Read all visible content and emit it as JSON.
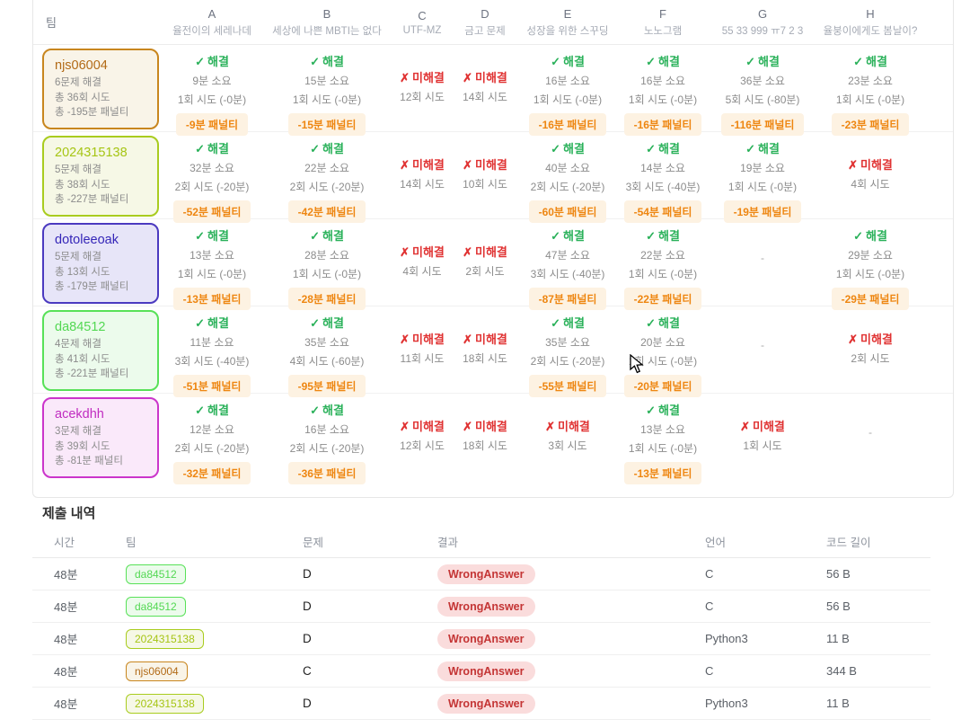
{
  "colors": {
    "solved_green": "#2ab15a",
    "failed_red": "#e03232",
    "penalty_orange": "#ee8611",
    "penalty_bg": "#fdf2e2"
  },
  "labels": {
    "solved": "해결",
    "failed": "미해결",
    "empty_dash": "-",
    "check_icon": "✓",
    "cross_icon": "✗"
  },
  "scoreboard": {
    "team_header": "팀",
    "problems": [
      {
        "letter": "A",
        "title": "율전이의 세레나데"
      },
      {
        "letter": "B",
        "title": "세상에 나쁜 MBTI는 없다"
      },
      {
        "letter": "C",
        "title": "UTF-MZ"
      },
      {
        "letter": "D",
        "title": "금고 문제"
      },
      {
        "letter": "E",
        "title": "성장을 위한 스꾸딩"
      },
      {
        "letter": "F",
        "title": "노노그램"
      },
      {
        "letter": "G",
        "title": "55 33 999 ㅠ7 2 3"
      },
      {
        "letter": "H",
        "title": "율붕이에게도 봄날이?"
      }
    ],
    "teams": [
      {
        "name": "njs06004",
        "solved": "6문제 해결",
        "attempts": "총 36회 시도",
        "penalty": "총 -195분 패널티",
        "text_color": "#b26a16",
        "border_color": "#c8861e",
        "bg_color": "#f9f4e8",
        "cells": [
          {
            "status": "solved",
            "time": "9분 소요",
            "tries": "1회 시도 (-0분)",
            "penalty": "-9분 패널티"
          },
          {
            "status": "solved",
            "time": "15분 소요",
            "tries": "1회 시도 (-0분)",
            "penalty": "-15분 패널티"
          },
          {
            "status": "failed",
            "tries": "12회 시도"
          },
          {
            "status": "failed",
            "tries": "14회 시도"
          },
          {
            "status": "solved",
            "time": "16분 소요",
            "tries": "1회 시도 (-0분)",
            "penalty": "-16분 패널티"
          },
          {
            "status": "solved",
            "time": "16분 소요",
            "tries": "1회 시도 (-0분)",
            "penalty": "-16분 패널티"
          },
          {
            "status": "solved",
            "time": "36분 소요",
            "tries": "5회 시도 (-80분)",
            "penalty": "-116분 패널티"
          },
          {
            "status": "solved",
            "time": "23분 소요",
            "tries": "1회 시도 (-0분)",
            "penalty": "-23분 패널티"
          }
        ]
      },
      {
        "name": "2024315138",
        "solved": "5문제 해결",
        "attempts": "총 38회 시도",
        "penalty": "총 -227분 패널티",
        "text_color": "#a6c514",
        "border_color": "#a9cc1f",
        "bg_color": "#f6f8e6",
        "cells": [
          {
            "status": "solved",
            "time": "32분 소요",
            "tries": "2회 시도 (-20분)",
            "penalty": "-52분 패널티"
          },
          {
            "status": "solved",
            "time": "22분 소요",
            "tries": "2회 시도 (-20분)",
            "penalty": "-42분 패널티"
          },
          {
            "status": "failed",
            "tries": "14회 시도"
          },
          {
            "status": "failed",
            "tries": "10회 시도"
          },
          {
            "status": "solved",
            "time": "40분 소요",
            "tries": "2회 시도 (-20분)",
            "penalty": "-60분 패널티"
          },
          {
            "status": "solved",
            "time": "14분 소요",
            "tries": "3회 시도 (-40분)",
            "penalty": "-54분 패널티"
          },
          {
            "status": "solved",
            "time": "19분 소요",
            "tries": "1회 시도 (-0분)",
            "penalty": "-19분 패널티"
          },
          {
            "status": "failed",
            "tries": "4회 시도"
          }
        ]
      },
      {
        "name": "dotoleeoak",
        "solved": "5문제 해결",
        "attempts": "총 13회 시도",
        "penalty": "총 -179분 패널티",
        "text_color": "#3526b8",
        "border_color": "#4b3ac0",
        "bg_color": "#e7e5f8",
        "cells": [
          {
            "status": "solved",
            "time": "13분 소요",
            "tries": "1회 시도 (-0분)",
            "penalty": "-13분 패널티"
          },
          {
            "status": "solved",
            "time": "28분 소요",
            "tries": "1회 시도 (-0분)",
            "penalty": "-28분 패널티"
          },
          {
            "status": "failed",
            "tries": "4회 시도"
          },
          {
            "status": "failed",
            "tries": "2회 시도"
          },
          {
            "status": "solved",
            "time": "47분 소요",
            "tries": "3회 시도 (-40분)",
            "penalty": "-87분 패널티"
          },
          {
            "status": "solved",
            "time": "22분 소요",
            "tries": "1회 시도 (-0분)",
            "penalty": "-22분 패널티"
          },
          {
            "status": "empty"
          },
          {
            "status": "solved",
            "time": "29분 소요",
            "tries": "1회 시도 (-0분)",
            "penalty": "-29분 패널티"
          }
        ]
      },
      {
        "name": "da84512",
        "solved": "4문제 해결",
        "attempts": "총 41회 시도",
        "penalty": "총 -221분 패널티",
        "text_color": "#53d853",
        "border_color": "#58e158",
        "bg_color": "#ecfbec",
        "cells": [
          {
            "status": "solved",
            "time": "11분 소요",
            "tries": "3회 시도 (-40분)",
            "penalty": "-51분 패널티"
          },
          {
            "status": "solved",
            "time": "35분 소요",
            "tries": "4회 시도 (-60분)",
            "penalty": "-95분 패널티"
          },
          {
            "status": "failed",
            "tries": "11회 시도"
          },
          {
            "status": "failed",
            "tries": "18회 시도"
          },
          {
            "status": "solved",
            "time": "35분 소요",
            "tries": "2회 시도 (-20분)",
            "penalty": "-55분 패널티"
          },
          {
            "status": "solved",
            "time": "20분 소요",
            "tries": "1회 시도 (-0분)",
            "penalty": "-20분 패널티"
          },
          {
            "status": "empty"
          },
          {
            "status": "failed",
            "tries": "2회 시도"
          }
        ]
      },
      {
        "name": "acekdhh",
        "solved": "3문제 해결",
        "attempts": "총 39회 시도",
        "penalty": "총 -81분 패널티",
        "text_color": "#c02cc0",
        "border_color": "#cb35cb",
        "bg_color": "#fae9fa",
        "cells": [
          {
            "status": "solved",
            "time": "12분 소요",
            "tries": "2회 시도 (-20분)",
            "penalty": "-32분 패널티"
          },
          {
            "status": "solved",
            "time": "16분 소요",
            "tries": "2회 시도 (-20분)",
            "penalty": "-36분 패널티"
          },
          {
            "status": "failed",
            "tries": "12회 시도"
          },
          {
            "status": "failed",
            "tries": "18회 시도"
          },
          {
            "status": "failed",
            "tries": "3회 시도"
          },
          {
            "status": "solved",
            "time": "13분 소요",
            "tries": "1회 시도 (-0분)",
            "penalty": "-13분 패널티"
          },
          {
            "status": "failed",
            "tries": "1회 시도"
          },
          {
            "status": "empty"
          }
        ]
      }
    ]
  },
  "submissions": {
    "title": "제출 내역",
    "headers": [
      "시간",
      "팀",
      "문제",
      "결과",
      "언어",
      "코드 길이"
    ],
    "rows": [
      {
        "time": "48분",
        "team": "da84512",
        "problem": "D",
        "result": "WrongAnswer",
        "lang": "C",
        "size": "56 B"
      },
      {
        "time": "48분",
        "team": "da84512",
        "problem": "D",
        "result": "WrongAnswer",
        "lang": "C",
        "size": "56 B"
      },
      {
        "time": "48분",
        "team": "2024315138",
        "problem": "D",
        "result": "WrongAnswer",
        "lang": "Python3",
        "size": "11 B"
      },
      {
        "time": "48분",
        "team": "njs06004",
        "problem": "C",
        "result": "WrongAnswer",
        "lang": "C",
        "size": "344 B"
      },
      {
        "time": "48분",
        "team": "2024315138",
        "problem": "D",
        "result": "WrongAnswer",
        "lang": "Python3",
        "size": "11 B"
      }
    ]
  }
}
